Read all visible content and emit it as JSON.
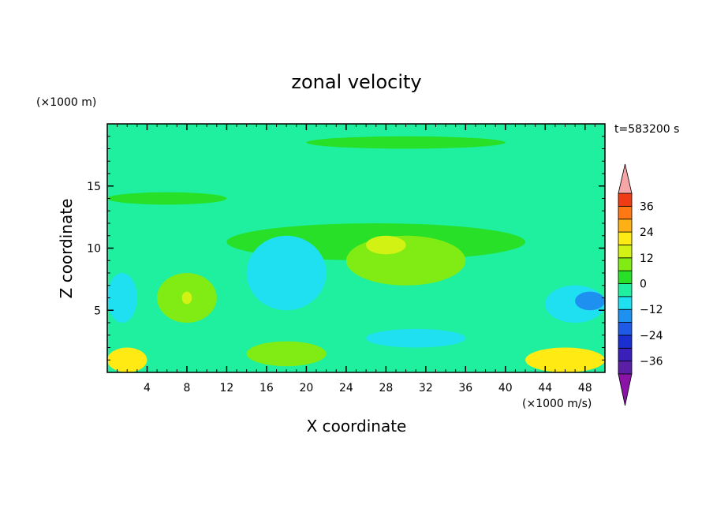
{
  "chart_data": {
    "type": "heatmap",
    "title": "zonal velocity",
    "xlabel": "X coordinate",
    "ylabel": "Z coordinate",
    "x_unit_label": "(×1000 m/s)",
    "y_unit_label": "(×1000 m)",
    "time_label": "t=583200 s",
    "x_ticks": [
      4,
      8,
      12,
      16,
      20,
      24,
      28,
      32,
      36,
      40,
      44,
      48
    ],
    "y_ticks": [
      5,
      10,
      15
    ],
    "xlim": [
      0,
      50
    ],
    "ylim": [
      0,
      20
    ],
    "colorbar": {
      "tick_labels": [
        "36",
        "24",
        "12",
        "0",
        "−12",
        "−24",
        "−36"
      ],
      "tick_values": [
        36,
        24,
        12,
        0,
        -12,
        -24,
        -36
      ],
      "range": [
        -42,
        42
      ],
      "levels": [
        {
          "min": -42,
          "max": -36,
          "color": "#5b1fa6"
        },
        {
          "min": -36,
          "max": -30,
          "color": "#3a1fb8"
        },
        {
          "min": -30,
          "max": -24,
          "color": "#1a2fd0"
        },
        {
          "min": -24,
          "max": -18,
          "color": "#1e5ae6"
        },
        {
          "min": -18,
          "max": -12,
          "color": "#1e90f0"
        },
        {
          "min": -12,
          "max": -6,
          "color": "#1ee0f0"
        },
        {
          "min": -6,
          "max": 0,
          "color": "#1ef0a0"
        },
        {
          "min": 0,
          "max": 6,
          "color": "#28e028"
        },
        {
          "min": 6,
          "max": 12,
          "color": "#80ec14"
        },
        {
          "min": 12,
          "max": 18,
          "color": "#d2f214"
        },
        {
          "min": 18,
          "max": 24,
          "color": "#ffea14"
        },
        {
          "min": 24,
          "max": 30,
          "color": "#ffb014"
        },
        {
          "min": 30,
          "max": 36,
          "color": "#ff7814"
        },
        {
          "min": 36,
          "max": 42,
          "color": "#f03c14"
        }
      ],
      "over_color": "#f6a6a6",
      "under_color": "#8a14a6"
    },
    "regions": [
      {
        "label": "background",
        "level": -3
      },
      {
        "label": "upper jet band",
        "x": [
          20,
          40
        ],
        "z": [
          18,
          19
        ],
        "level": 3
      },
      {
        "label": "upper-left band",
        "x": [
          0,
          12
        ],
        "z": [
          13.5,
          14.5
        ],
        "level": 3
      },
      {
        "label": "central level",
        "x": [
          12,
          42
        ],
        "z": [
          9,
          12
        ],
        "level": 3
      },
      {
        "label": "central max",
        "x": [
          24,
          36
        ],
        "z": [
          7,
          11
        ],
        "level": 9
      },
      {
        "label": "central peak",
        "x": [
          26,
          30
        ],
        "z": [
          9.5,
          11
        ],
        "level": 15
      },
      {
        "label": "left max",
        "x": [
          5,
          11
        ],
        "z": [
          4,
          8
        ],
        "level": 9
      },
      {
        "label": "left peak",
        "x": [
          7.5,
          8.5
        ],
        "z": [
          5.5,
          6.5
        ],
        "level": 15
      },
      {
        "label": "central min",
        "x": [
          14,
          22
        ],
        "z": [
          5,
          11
        ],
        "level": -9
      },
      {
        "label": "left min",
        "x": [
          0,
          3
        ],
        "z": [
          4,
          8
        ],
        "level": -9
      },
      {
        "label": "right min",
        "x": [
          44,
          50
        ],
        "z": [
          4,
          7
        ],
        "level": -9
      },
      {
        "label": "right edge min",
        "x": [
          47,
          50
        ],
        "z": [
          5,
          6.5
        ],
        "level": -15
      },
      {
        "label": "bottom-left max",
        "x": [
          0,
          4
        ],
        "z": [
          0,
          2
        ],
        "level": 21
      },
      {
        "label": "bottom-right max",
        "x": [
          42,
          50
        ],
        "z": [
          0,
          2
        ],
        "level": 21
      },
      {
        "label": "bottom-center max",
        "x": [
          14,
          22
        ],
        "z": [
          0.5,
          2.5
        ],
        "level": 9
      },
      {
        "label": "lower min",
        "x": [
          26,
          36
        ],
        "z": [
          2,
          3.5
        ],
        "level": -9
      }
    ]
  }
}
